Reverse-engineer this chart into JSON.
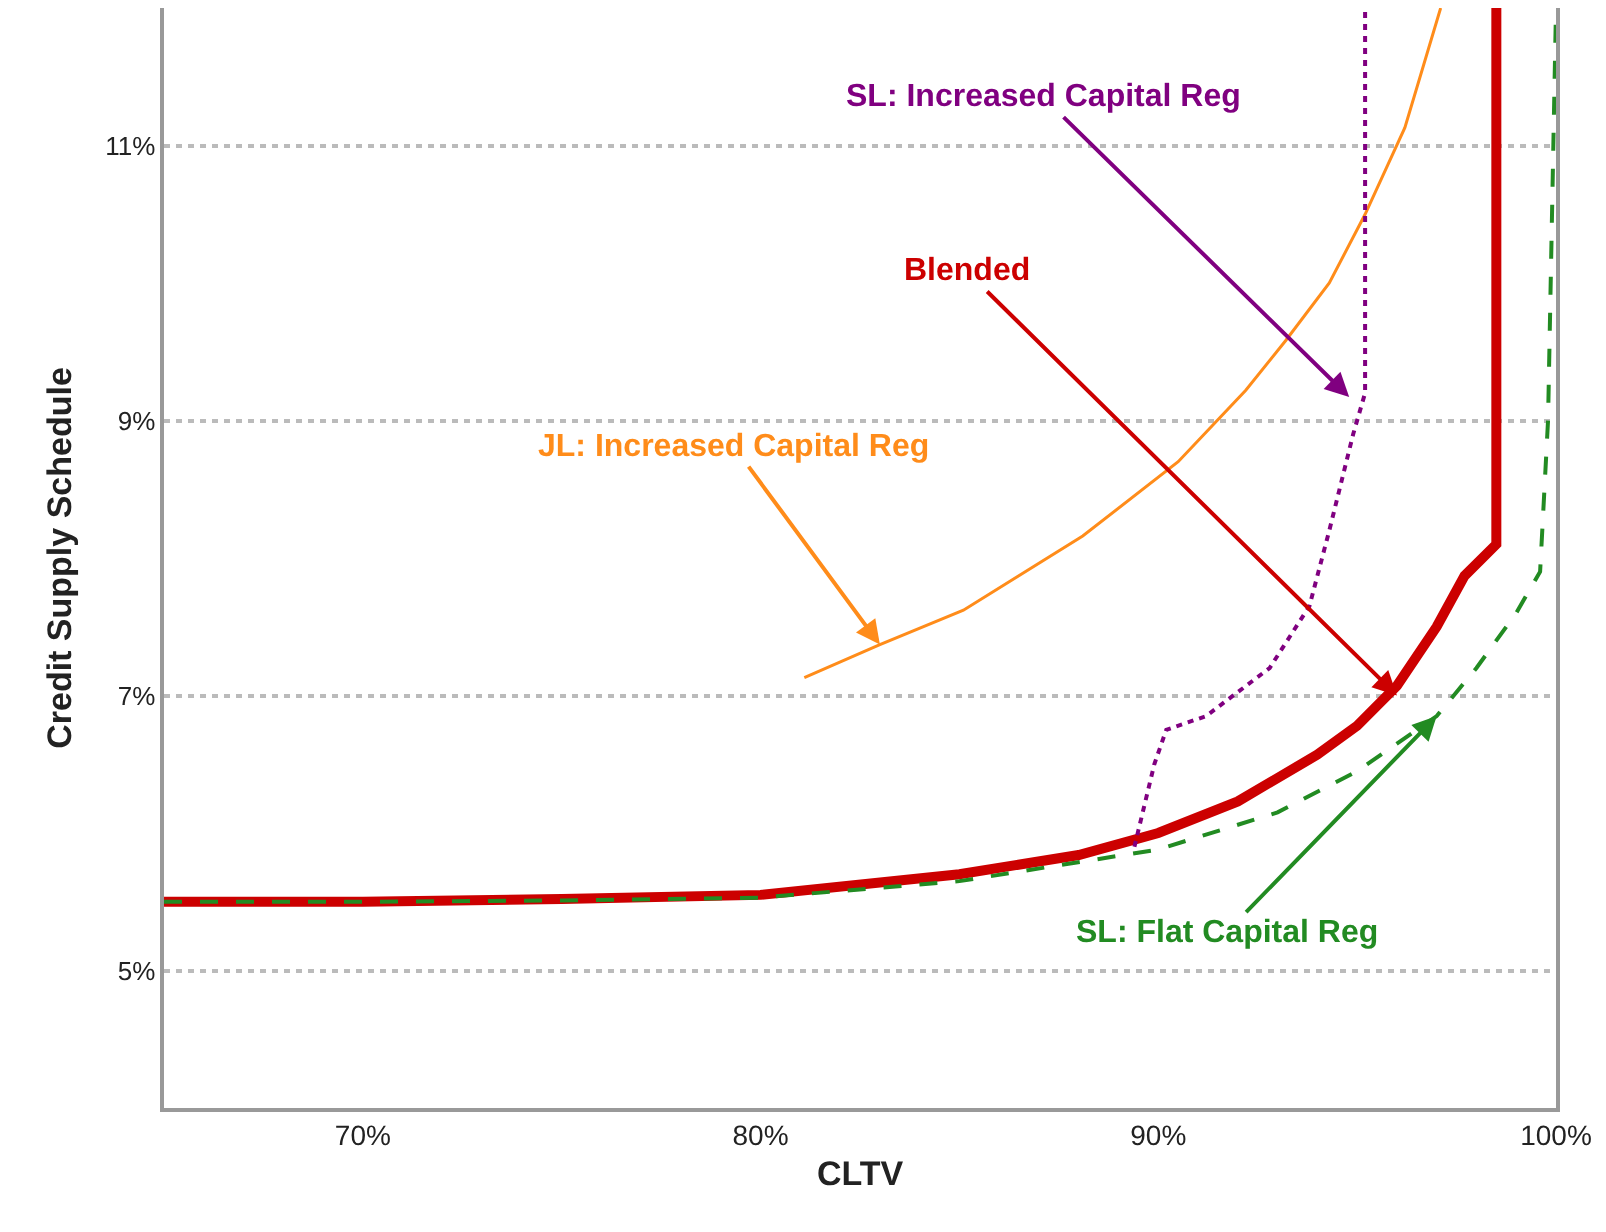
{
  "chart_data": {
    "type": "line",
    "xlabel": "CLTV",
    "ylabel": "Credit Supply Schedule",
    "xlim": [
      65,
      100
    ],
    "ylim": [
      4,
      12
    ],
    "xticks": [
      {
        "value": 70,
        "label": "70%"
      },
      {
        "value": 80,
        "label": "80%"
      },
      {
        "value": 90,
        "label": "90%"
      },
      {
        "value": 100,
        "label": "100%"
      }
    ],
    "yticks": [
      {
        "value": 5,
        "label": "5%"
      },
      {
        "value": 7,
        "label": "7%"
      },
      {
        "value": 9,
        "label": "9%"
      },
      {
        "value": 11,
        "label": "11%"
      }
    ],
    "grid": "y",
    "series": [
      {
        "color": "#ff8c1a",
        "line_style": "solid",
        "x": [
          81.1,
          83,
          85.1,
          88.1,
          90.5,
          92.2,
          93.2,
          94.3,
          95.2,
          96.2,
          97.1
        ],
        "values": [
          7.13,
          7.37,
          7.62,
          8.16,
          8.7,
          9.22,
          9.58,
          10.0,
          10.5,
          11.13,
          12
        ]
      },
      {
        "color": "#cc0000",
        "line_style": "solid",
        "x": [
          65,
          70,
          75,
          80,
          85,
          88,
          90,
          92,
          94,
          95,
          96,
          97,
          97.7,
          98.5,
          98.5
        ],
        "values": [
          5.5,
          5.5,
          5.52,
          5.55,
          5.7,
          5.84,
          6.0,
          6.23,
          6.57,
          6.78,
          7.07,
          7.5,
          7.87,
          8.1,
          12
        ]
      },
      {
        "color": "#800080",
        "line_style": "dotted",
        "x": [
          89.4,
          89.9,
          90.2,
          91.2,
          92.8,
          93.8,
          94.3,
          94.9,
          95.2,
          95.2,
          95.2
        ],
        "values": [
          5.9,
          6.5,
          6.75,
          6.85,
          7.2,
          7.65,
          8.2,
          8.9,
          9.2,
          10.5,
          12
        ]
      },
      {
        "color": "#228b22",
        "line_style": "dashed",
        "x": [
          65,
          70,
          75,
          80,
          85,
          90,
          93,
          95,
          96,
          97,
          98,
          99,
          99.6,
          99.8,
          100
        ],
        "values": [
          5.5,
          5.5,
          5.51,
          5.53,
          5.65,
          5.88,
          6.15,
          6.45,
          6.65,
          6.85,
          7.2,
          7.6,
          7.9,
          9.0,
          12
        ]
      }
    ],
    "annotations": [
      {
        "text": "JL: Increased Capital Reg",
        "x": 83,
        "y": 7.37
      },
      {
        "text": "Blended",
        "x": 96.0,
        "y": 7.0
      },
      {
        "text": "SL: Increased Capital Reg",
        "x": 94.8,
        "y": 9.17
      },
      {
        "text": "SL: Flat Capital Reg",
        "x": 97,
        "y": 6.85
      }
    ]
  }
}
